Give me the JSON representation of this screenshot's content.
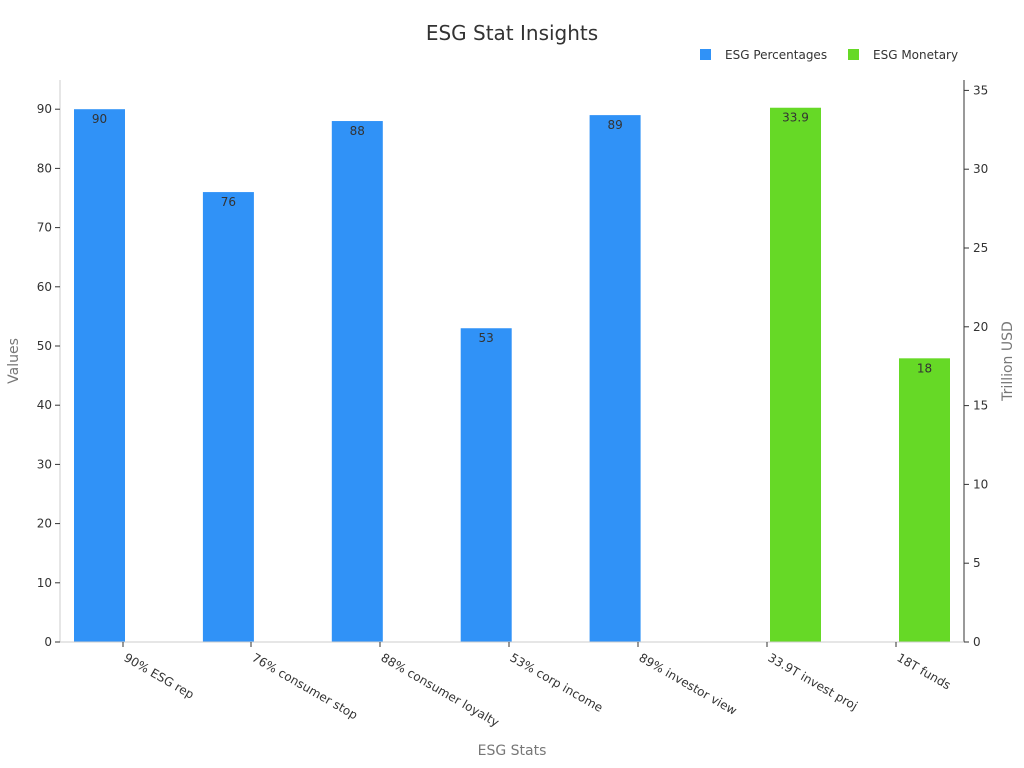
{
  "chart_data": {
    "type": "bar",
    "title": "ESG Stat Insights",
    "xlabel": "ESG Stats",
    "ylabel": "Values",
    "y2label": "Trillion USD",
    "categories": [
      "90% ESG rep",
      "76% consumer stop",
      "88% consumer loyalty",
      "53% corp income",
      "89% investor view",
      "33.9T invest proj",
      "18T funds"
    ],
    "series": [
      {
        "name": "ESG Percentages",
        "axis": "left",
        "color": "#3092f7",
        "values": [
          90,
          76,
          88,
          53,
          89,
          null,
          null
        ],
        "labels": [
          "90",
          "76",
          "88",
          "53",
          "89",
          "",
          ""
        ]
      },
      {
        "name": "ESG Monetary",
        "axis": "right",
        "color": "#66d926",
        "values": [
          null,
          null,
          null,
          null,
          null,
          33.9,
          18
        ],
        "labels": [
          "",
          "",
          "",
          "",
          "",
          "33.9",
          "18"
        ]
      }
    ],
    "ylim": [
      0,
      95
    ],
    "y2lim": [
      0,
      35.6
    ],
    "yticks": [
      0,
      10,
      20,
      30,
      40,
      50,
      60,
      70,
      80,
      90
    ],
    "y2ticks": [
      0,
      5,
      10,
      15,
      20,
      25,
      30,
      35
    ],
    "legend_position": "top-right",
    "grid": false
  }
}
